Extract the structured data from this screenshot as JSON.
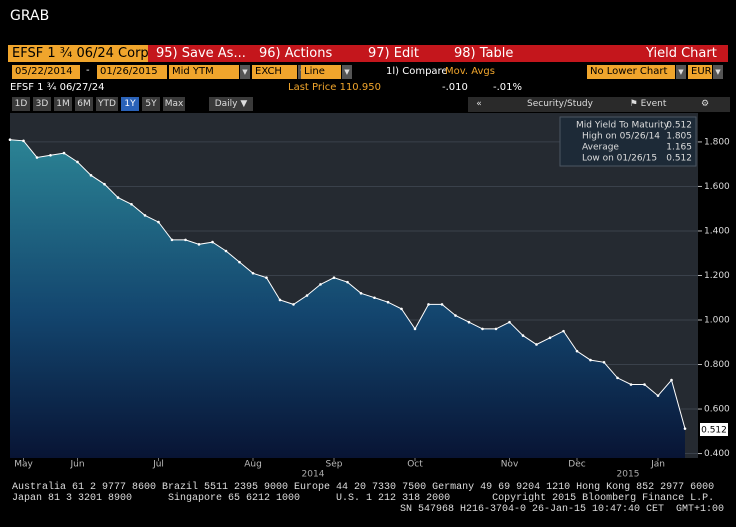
{
  "window_title": "GRAB",
  "toolbar": {
    "security": "EFSF 1 ¾ 06/24 Corp",
    "buttons": [
      "95) Save As...",
      "96) Actions",
      "97) Edit",
      "98) Table"
    ],
    "view": "Yield Chart"
  },
  "settings": {
    "start": "05/22/2014",
    "separator": "-",
    "end": "01/26/2015",
    "field": "Mid YTM",
    "source": "EXCH",
    "style": "Line",
    "compare": "1l) Compare",
    "compare_option": "Mov. Avgs",
    "lower": "No Lower Chart",
    "currency": "EUR"
  },
  "quote": {
    "security": "EFSF 1 ¾ 06/27/24",
    "last_price": "Last Price 110.950",
    "change": "-.010",
    "pct_change": "-.01%"
  },
  "periods": [
    "1D",
    "3D",
    "1M",
    "6M",
    "YTD",
    "1Y",
    "5Y",
    "Max"
  ],
  "frequency": "Daily",
  "tools": [
    "«",
    "Security/Study",
    "Event"
  ],
  "chart_data": {
    "type": "line",
    "categories": [
      null,
      "May",
      null,
      null,
      null,
      "Jun",
      null,
      null,
      null,
      null,
      null,
      "Jul",
      null,
      null,
      null,
      null,
      null,
      null,
      "Aug",
      null,
      null,
      null,
      null,
      null,
      "Sep",
      null,
      null,
      null,
      null,
      null,
      "Oct",
      null,
      null,
      null,
      null,
      null,
      null,
      "Nov",
      null,
      null,
      null,
      null,
      "Dec",
      null,
      null,
      null,
      null,
      null,
      "Jan",
      null,
      null
    ],
    "year_labels": [
      "2014",
      "2015"
    ],
    "series": [
      {
        "name": "Mid Yield To Maturity",
        "color": "#ffffff",
        "values": [
          1.81,
          1.805,
          1.73,
          1.74,
          1.75,
          1.71,
          1.65,
          1.61,
          1.55,
          1.52,
          1.47,
          1.44,
          1.36,
          1.36,
          1.34,
          1.35,
          1.31,
          1.26,
          1.21,
          1.19,
          1.09,
          1.07,
          1.11,
          1.16,
          1.19,
          1.17,
          1.12,
          1.1,
          1.08,
          1.05,
          0.96,
          1.07,
          1.07,
          1.02,
          0.99,
          0.96,
          0.96,
          0.99,
          0.93,
          0.89,
          0.92,
          0.95,
          0.86,
          0.82,
          0.81,
          0.74,
          0.71,
          0.71,
          0.66,
          0.73,
          0.512
        ]
      }
    ],
    "last_value_label": "0.512",
    "legend": [
      {
        "label": "High on 05/26/14",
        "value": "1.805"
      },
      {
        "label": "Average",
        "value": "1.165"
      },
      {
        "label": "Low on 01/26/15",
        "value": "0.512"
      }
    ],
    "ylim": [
      0.38,
      1.93
    ],
    "yticks": [
      {
        "value": 0.4,
        "label": "0.400"
      },
      {
        "value": 0.6,
        "label": "0.600"
      },
      {
        "value": 0.8,
        "label": "0.800"
      },
      {
        "value": 1.0,
        "label": "1.000"
      },
      {
        "value": 1.2,
        "label": "1.200"
      },
      {
        "value": 1.4,
        "label": "1.400"
      },
      {
        "value": 1.6,
        "label": "1.600"
      },
      {
        "value": 1.8,
        "label": "1.800"
      }
    ],
    "grid": true
  },
  "footer": [
    "Australia 61 2 9777 8600 Brazil 5511 2395 9000 Europe 44 20 7330 7500 Germany 49 69 9204 1210 Hong Kong 852 2977 6000",
    "Japan 81 3 3201 8900      Singapore 65 6212 1000      U.S. 1 212 318 2000       Copyright 2015 Bloomberg Finance L.P.",
    "SN 547968 H216-3704-0 26-Jan-15 10:47:40 CET  GMT+1:00"
  ]
}
